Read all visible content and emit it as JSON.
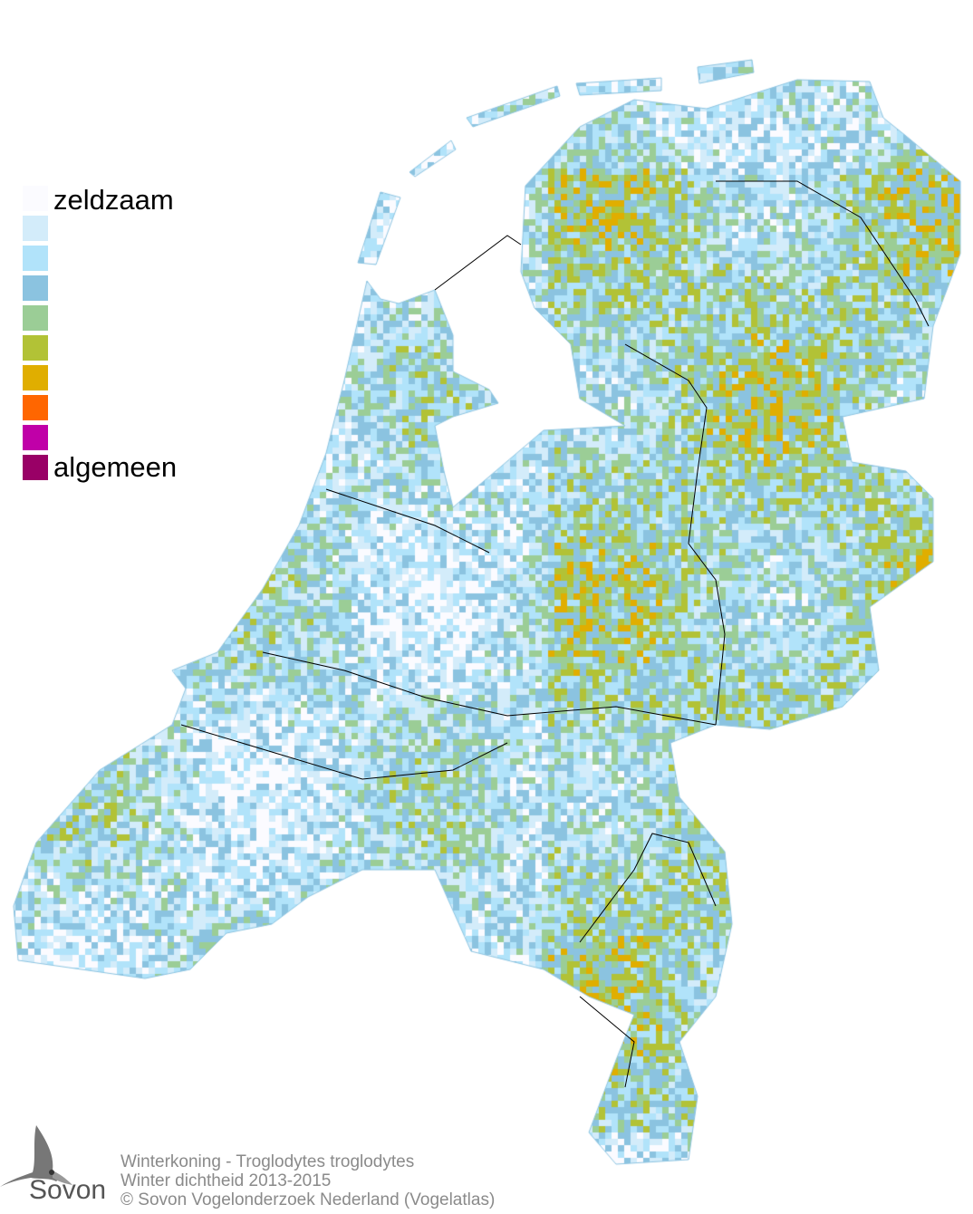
{
  "legend": {
    "colors": [
      "#fbfbff",
      "#d3ecfa",
      "#b1e3fa",
      "#8bc3e0",
      "#9bcd96",
      "#b2c236",
      "#e0ae00",
      "#ff6600",
      "#c000a8",
      "#990066"
    ],
    "label_low": "zeldzaam",
    "label_high": "algemeen"
  },
  "caption": {
    "line1": "Winterkoning - Troglodytes troglodytes",
    "line2": "Winter dichtheid 2013-2015",
    "line3": "© Sovon Vogelonderzoek Nederland (Vogelatlas)"
  },
  "logo": {
    "text": "Sovon"
  }
}
